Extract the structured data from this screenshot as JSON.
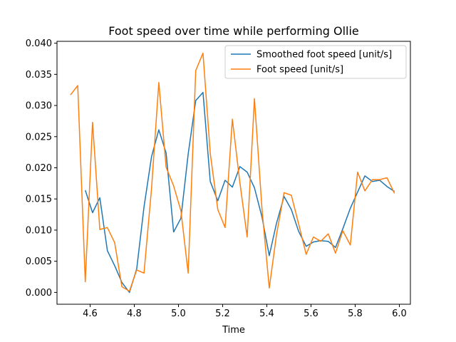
{
  "chart_data": {
    "type": "line",
    "title": "Foot speed over time while performing Ollie",
    "xlabel": "Time",
    "ylabel": "",
    "xlim": [
      4.45,
      6.05
    ],
    "ylim": [
      -0.0019,
      0.0403
    ],
    "xticks": [
      4.6,
      4.8,
      5.0,
      5.2,
      5.4,
      5.6,
      5.8,
      6.0
    ],
    "xtick_labels": [
      "4.6",
      "4.8",
      "5.0",
      "5.2",
      "5.4",
      "5.6",
      "5.8",
      "6.0"
    ],
    "yticks": [
      0.0,
      0.005,
      0.01,
      0.015,
      0.02,
      0.025,
      0.03,
      0.035,
      0.04
    ],
    "ytick_labels": [
      "0.000",
      "0.005",
      "0.010",
      "0.015",
      "0.020",
      "0.025",
      "0.030",
      "0.035",
      "0.040"
    ],
    "legend_position": "top-right",
    "grid": false,
    "series": [
      {
        "name": "Smoothed foot speed [unit/s]",
        "color": "#1f77b4",
        "x": [
          4.578,
          4.611,
          4.644,
          4.678,
          4.711,
          4.744,
          4.778,
          4.811,
          4.844,
          4.878,
          4.911,
          4.944,
          4.978,
          5.011,
          5.044,
          5.078,
          5.111,
          5.144,
          5.178,
          5.211,
          5.244,
          5.278,
          5.311,
          5.344,
          5.378,
          5.411,
          5.444,
          5.478,
          5.511,
          5.544,
          5.578,
          5.611,
          5.644,
          5.678,
          5.711,
          5.744,
          5.778,
          5.811,
          5.844,
          5.878,
          5.911,
          5.944,
          5.978
        ],
        "y": [
          0.0164,
          0.0128,
          0.0152,
          0.0067,
          0.0043,
          0.0016,
          0.0,
          0.0038,
          0.0137,
          0.0218,
          0.0261,
          0.0224,
          0.0097,
          0.0119,
          0.0222,
          0.0308,
          0.0321,
          0.0178,
          0.0147,
          0.018,
          0.0169,
          0.0202,
          0.0193,
          0.0168,
          0.0121,
          0.0059,
          0.0111,
          0.0154,
          0.0133,
          0.0098,
          0.0074,
          0.0081,
          0.0083,
          0.0082,
          0.0072,
          0.0102,
          0.0135,
          0.0161,
          0.0187,
          0.0178,
          0.018,
          0.017,
          0.0162
        ]
      },
      {
        "name": "Foot speed [unit/s]",
        "color": "#ff7f0e",
        "x": [
          4.511,
          4.544,
          4.578,
          4.611,
          4.644,
          4.678,
          4.711,
          4.744,
          4.778,
          4.811,
          4.844,
          4.878,
          4.911,
          4.944,
          4.978,
          5.011,
          5.044,
          5.078,
          5.111,
          5.144,
          5.178,
          5.211,
          5.244,
          5.278,
          5.311,
          5.344,
          5.378,
          5.411,
          5.444,
          5.478,
          5.511,
          5.544,
          5.578,
          5.611,
          5.644,
          5.678,
          5.711,
          5.744,
          5.778,
          5.811,
          5.844,
          5.878,
          5.911,
          5.944,
          5.978
        ],
        "y": [
          0.0317,
          0.0332,
          0.0017,
          0.0273,
          0.0101,
          0.0104,
          0.008,
          0.0009,
          0.0002,
          0.0036,
          0.0031,
          0.0167,
          0.0337,
          0.0201,
          0.0171,
          0.0131,
          0.0031,
          0.0356,
          0.0384,
          0.0223,
          0.0133,
          0.0104,
          0.0278,
          0.0176,
          0.0089,
          0.0311,
          0.0134,
          0.0007,
          0.0093,
          0.016,
          0.0156,
          0.011,
          0.0061,
          0.0089,
          0.0082,
          0.0094,
          0.0063,
          0.0099,
          0.0076,
          0.0193,
          0.0163,
          0.0181,
          0.0181,
          0.0184,
          0.0159
        ]
      }
    ]
  }
}
